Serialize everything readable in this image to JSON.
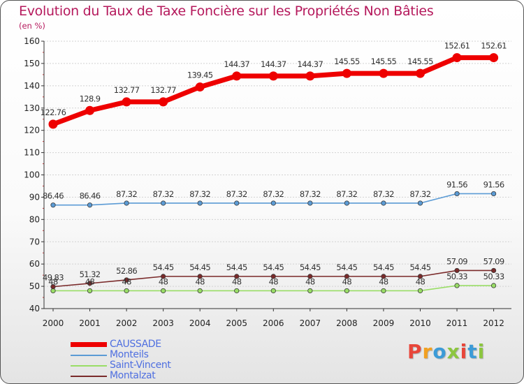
{
  "title": "Evolution du Taux de Taxe Foncière sur les Propriétés Non Bâties",
  "subtitle": "(en %)",
  "logo": {
    "text": "Proxiti",
    "colors": [
      "#e8463a",
      "#f2a020",
      "#3c9bd7",
      "#8cc63f",
      "#e8463a",
      "#3c9bd7",
      "#8cc63f"
    ]
  },
  "chart_data": {
    "type": "line",
    "title": "Evolution du Taux de Taxe Foncière sur les Propriétés Non Bâties",
    "ylabel": "(en %)",
    "xlabel": "",
    "ylim": [
      40,
      160
    ],
    "yticks": [
      40,
      50,
      60,
      70,
      80,
      90,
      100,
      110,
      120,
      130,
      140,
      150,
      160
    ],
    "categories": [
      "2000",
      "2001",
      "2002",
      "2003",
      "2004",
      "2005",
      "2006",
      "2007",
      "2008",
      "2009",
      "2010",
      "2011",
      "2012"
    ],
    "series": [
      {
        "name": "CAUSSADE",
        "color": "#ee0000",
        "values": [
          122.76,
          128.9,
          132.77,
          132.77,
          139.45,
          144.37,
          144.37,
          144.37,
          145.55,
          145.55,
          145.55,
          152.61,
          152.61
        ],
        "labels": [
          "122.76",
          "128.9",
          "132.77",
          "132.77",
          "139.45",
          "144.37",
          "144.37",
          "144.37",
          "145.55",
          "145.55",
          "145.55",
          "152.61",
          "152.61"
        ]
      },
      {
        "name": "Monteils",
        "color": "#5b9bd5",
        "values": [
          86.46,
          86.46,
          87.32,
          87.32,
          87.32,
          87.32,
          87.32,
          87.32,
          87.32,
          87.32,
          87.32,
          91.56,
          91.56
        ],
        "labels": [
          "86.46",
          "86.46",
          "87.32",
          "87.32",
          "87.32",
          "87.32",
          "87.32",
          "87.32",
          "87.32",
          "87.32",
          "87.32",
          "91.56",
          "91.56"
        ]
      },
      {
        "name": "Saint-Vincent",
        "color": "#99dd66",
        "values": [
          48,
          48,
          48,
          48,
          48,
          48,
          48,
          48,
          48,
          48,
          48,
          50.33,
          50.33
        ],
        "labels": [
          "48",
          "48",
          "48",
          "48",
          "48",
          "48",
          "48",
          "48",
          "48",
          "48",
          "48",
          "50.33",
          "50.33"
        ]
      },
      {
        "name": "Montalzat",
        "color": "#7a2a2a",
        "values": [
          49.83,
          51.32,
          52.86,
          54.45,
          54.45,
          54.45,
          54.45,
          54.45,
          54.45,
          54.45,
          54.45,
          57.09,
          57.09
        ],
        "labels": [
          "49.83",
          "51.32",
          "52.86",
          "54.45",
          "54.45",
          "54.45",
          "54.45",
          "54.45",
          "54.45",
          "54.45",
          "54.45",
          "57.09",
          "57.09"
        ]
      }
    ]
  }
}
